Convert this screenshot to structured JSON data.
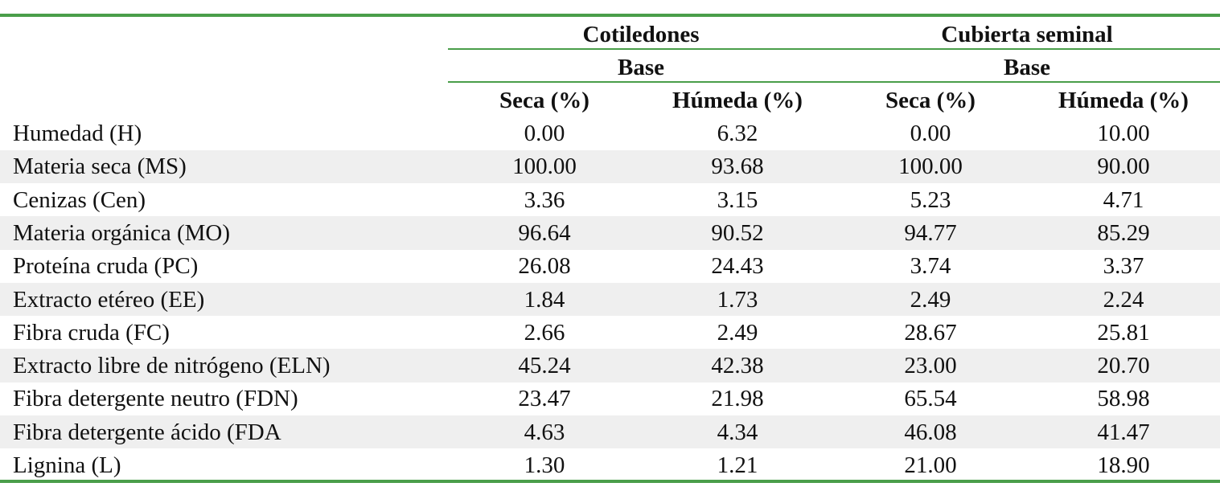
{
  "header": {
    "groups": [
      {
        "label": "Cotiledones",
        "sub": "Base"
      },
      {
        "label": "Cubierta seminal",
        "sub": "Base"
      }
    ],
    "columns": [
      "Seca (%)",
      "Húmeda (%)",
      "Seca (%)",
      "Húmeda (%)"
    ]
  },
  "rows": [
    {
      "label": "Humedad (H)",
      "values": [
        "0.00",
        "6.32",
        "0.00",
        "10.00"
      ]
    },
    {
      "label": "Materia seca (MS)",
      "values": [
        "100.00",
        "93.68",
        "100.00",
        "90.00"
      ]
    },
    {
      "label": "Cenizas (Cen)",
      "values": [
        "3.36",
        "3.15",
        "5.23",
        "4.71"
      ]
    },
    {
      "label": "Materia orgánica (MO)",
      "values": [
        "96.64",
        "90.52",
        "94.77",
        "85.29"
      ]
    },
    {
      "label": "Proteína cruda (PC)",
      "values": [
        "26.08",
        "24.43",
        "3.74",
        "3.37"
      ]
    },
    {
      "label": "Extracto etéreo (EE)",
      "values": [
        "1.84",
        "1.73",
        "2.49",
        "2.24"
      ]
    },
    {
      "label": "Fibra cruda (FC)",
      "values": [
        "2.66",
        "2.49",
        "28.67",
        "25.81"
      ]
    },
    {
      "label": "Extracto libre de nitrógeno (ELN)",
      "values": [
        "45.24",
        "42.38",
        "23.00",
        "20.70"
      ]
    },
    {
      "label": "Fibra detergente neutro (FDN)",
      "values": [
        "23.47",
        "21.98",
        "65.54",
        "58.98"
      ]
    },
    {
      "label": "Fibra detergente ácido (FDA",
      "values": [
        "4.63",
        "4.34",
        "46.08",
        "41.47"
      ]
    },
    {
      "label": "Lignina (L)",
      "values": [
        "1.30",
        "1.21",
        "21.00",
        "18.90"
      ]
    }
  ]
}
